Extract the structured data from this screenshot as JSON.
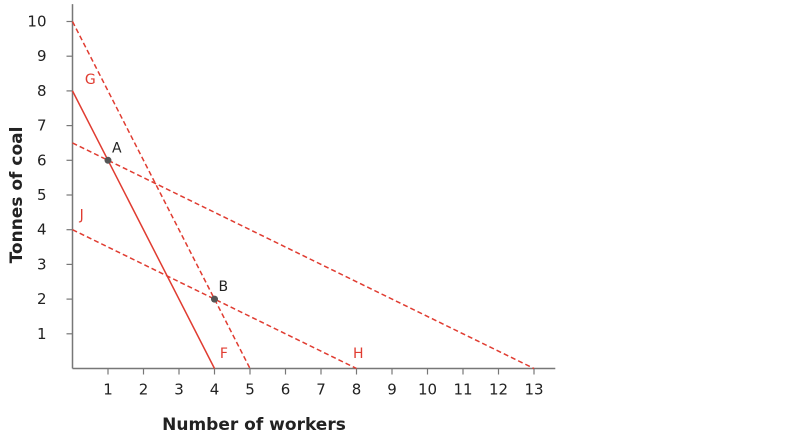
{
  "chart_data": {
    "type": "line",
    "title": "",
    "xlabel": "Number of workers",
    "ylabel": "Tonnes of coal",
    "xlim": [
      0,
      13.6
    ],
    "ylim": [
      0,
      10.5
    ],
    "xticks": [
      1,
      2,
      3,
      4,
      5,
      6,
      7,
      8,
      9,
      10,
      11,
      12,
      13
    ],
    "yticks": [
      1,
      2,
      3,
      4,
      5,
      6,
      7,
      8,
      9,
      10
    ],
    "grid": false,
    "line_color": "#e03c31",
    "point_color": "#555555",
    "series": [
      {
        "x": [
          0,
          4
        ],
        "y": [
          8,
          0
        ],
        "style": "solid",
        "labels": [
          "G",
          "F"
        ]
      },
      {
        "x": [
          0,
          5
        ],
        "y": [
          10,
          0
        ],
        "style": "dashed"
      },
      {
        "x": [
          0,
          13
        ],
        "y": [
          6.5,
          0
        ],
        "style": "dashed"
      },
      {
        "x": [
          0,
          8
        ],
        "y": [
          4,
          0
        ],
        "style": "dashed",
        "labels": [
          "J",
          "H"
        ]
      }
    ],
    "points": [
      {
        "label": "A",
        "x": 1,
        "y": 6
      },
      {
        "label": "B",
        "x": 4,
        "y": 2
      }
    ],
    "line_labels": [
      {
        "text": "G",
        "x": 0.35,
        "y": 8.2
      },
      {
        "text": "J",
        "x": 0.2,
        "y": 4.3
      },
      {
        "text": "F",
        "x": 4.15,
        "y": 0.3
      },
      {
        "text": "H",
        "x": 7.9,
        "y": 0.3
      }
    ]
  }
}
